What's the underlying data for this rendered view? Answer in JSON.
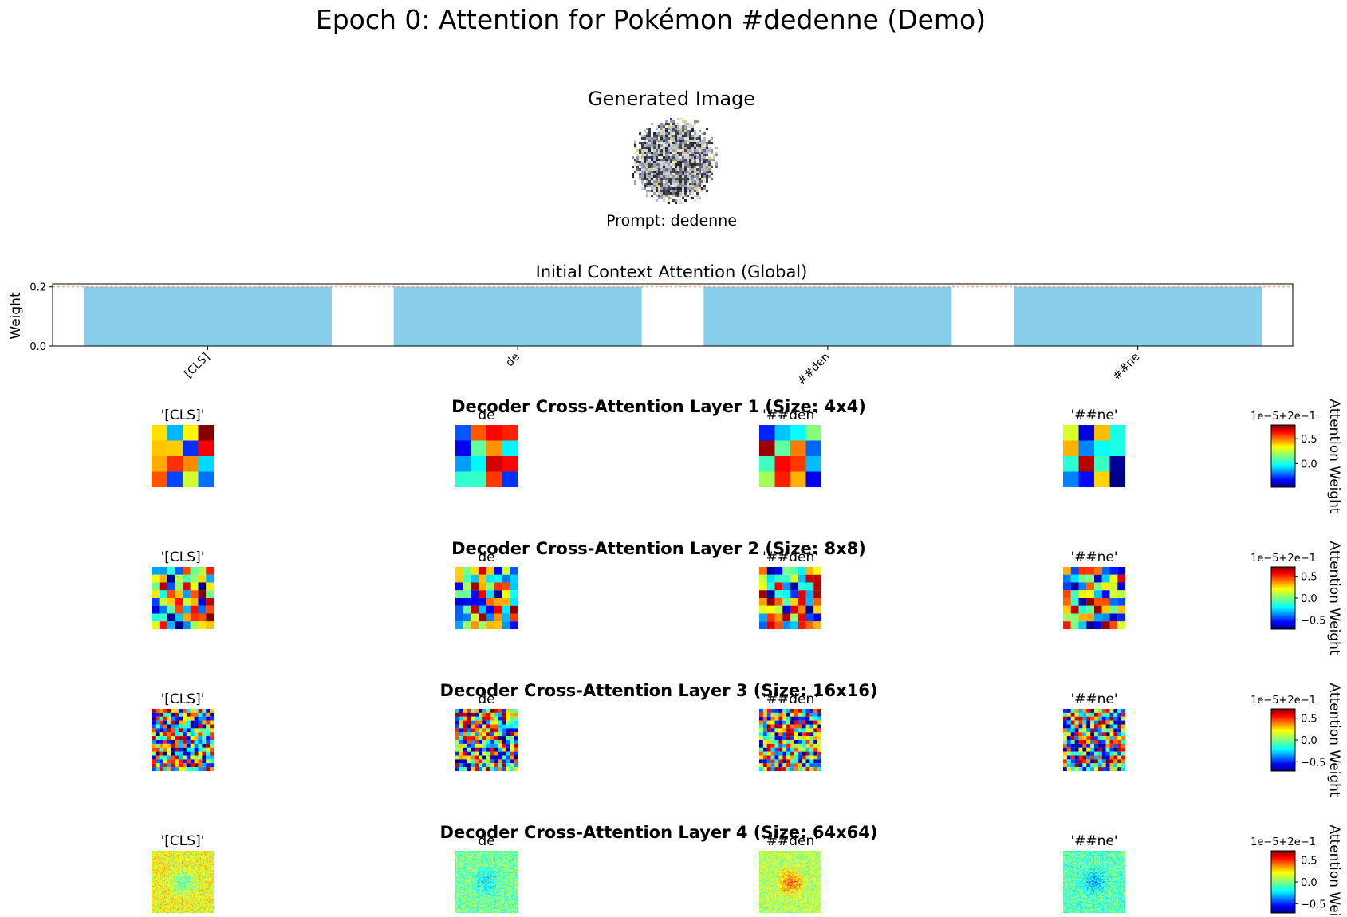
{
  "figure": {
    "title": "Epoch 0: Attention for Pokémon #dedenne (Demo)"
  },
  "generated": {
    "title": "Generated Image",
    "prompt": "Prompt: dedenne"
  },
  "chart_data": [
    {
      "type": "bar",
      "title": "Initial Context Attention (Global)",
      "xlabel": "",
      "ylabel": "Weight",
      "categories": [
        "[CLS]",
        "de",
        "##den",
        "##ne"
      ],
      "values": [
        0.2,
        0.2,
        0.2,
        0.2
      ],
      "ylim": [
        0,
        0.21
      ],
      "yticks": [
        "0.0",
        "0.2"
      ],
      "reference_line": 0.2,
      "bar_color": "#87ceeb",
      "grid": false
    },
    {
      "type": "heatmap",
      "title": "Decoder Cross-Attention Layer 1 (Size: 4x4)",
      "grid_size": 4,
      "panels": [
        "'[CLS]'",
        "de",
        "'##den'",
        "'##ne'"
      ],
      "colormap": "jet",
      "colorbar": {
        "label": "Attention Weight",
        "offset": "1e−5+2e−1",
        "ticks": [
          "0.5",
          "0.0"
        ]
      }
    },
    {
      "type": "heatmap",
      "title": "Decoder Cross-Attention Layer 2 (Size: 8x8)",
      "grid_size": 8,
      "panels": [
        "'[CLS]'",
        "de",
        "'##den'",
        "'##ne'"
      ],
      "colormap": "jet",
      "colorbar": {
        "label": "Attention Weight",
        "offset": "1e−5+2e−1",
        "ticks": [
          "0.5",
          "0.0",
          "−0.5"
        ]
      }
    },
    {
      "type": "heatmap",
      "title": "Decoder Cross-Attention Layer 3 (Size: 16x16)",
      "grid_size": 16,
      "panels": [
        "'[CLS]'",
        "de",
        "'##den'",
        "'##ne'"
      ],
      "colormap": "jet",
      "colorbar": {
        "label": "Attention Weight",
        "offset": "1e−5+2e−1",
        "ticks": [
          "0.5",
          "0.0",
          "−0.5"
        ]
      }
    },
    {
      "type": "heatmap",
      "title": "Decoder Cross-Attention Layer 4 (Size: 64x64)",
      "grid_size": 64,
      "panels": [
        "'[CLS]'",
        "de",
        "'##den'",
        "'##ne'"
      ],
      "colormap": "jet",
      "colorbar": {
        "label": "Attention Weight",
        "offset": "1e−5+2e−1",
        "ticks": [
          "0.5",
          "0.0",
          "−0.5"
        ]
      }
    }
  ]
}
